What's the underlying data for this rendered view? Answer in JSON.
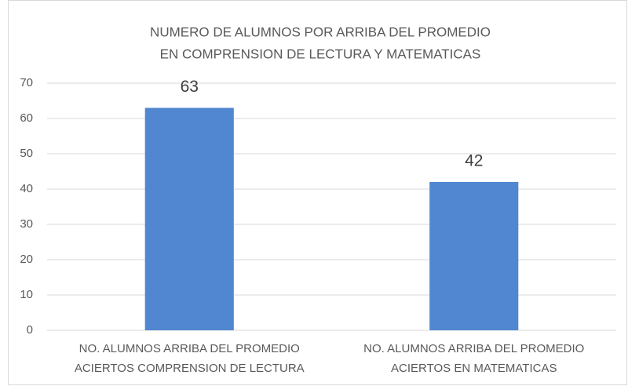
{
  "chart_data": {
    "type": "bar",
    "title": [
      "NUMERO DE ALUMNOS POR ARRIBA DEL PROMEDIO",
      "EN COMPRENSION DE LECTURA Y MATEMATICAS"
    ],
    "categories": [
      [
        "NO. ALUMNOS ARRIBA DEL PROMEDIO",
        "ACIERTOS COMPRENSION DE LECTURA"
      ],
      [
        "NO. ALUMNOS ARRIBA DEL PROMEDIO",
        "ACIERTOS EN MATEMATICAS"
      ]
    ],
    "values": [
      63,
      42
    ],
    "color": "#5087d0",
    "ylim": [
      0,
      70
    ],
    "yticks": [
      0,
      10,
      20,
      30,
      40,
      50,
      60,
      70
    ],
    "grid": true
  }
}
